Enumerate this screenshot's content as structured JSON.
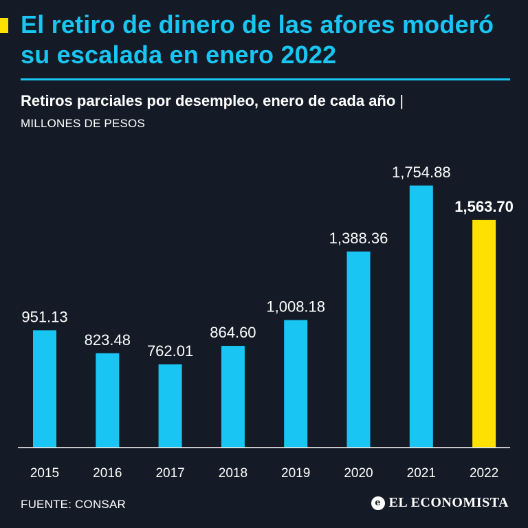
{
  "headline": "El retiro de dinero de las afores moderó su escalada en enero 2022",
  "subtitle": "Retiros parciales por desempleo, enero de cada año",
  "subtitle_separator": "|",
  "units_label": "MILLONES DE PESOS",
  "source": "FUENTE: CONSAR",
  "brand": {
    "name": "EL ECONOMISTA",
    "icon": "e-logo-icon"
  },
  "colors": {
    "background": "#141b26",
    "accent": "#19c6f3",
    "highlight": "#ffe000",
    "text": "#ffffff"
  },
  "chart_data": {
    "type": "bar",
    "title": "Retiros parciales por desempleo, enero de cada año",
    "ylabel": "MILLONES DE PESOS",
    "xlabel": "",
    "categories": [
      "2015",
      "2016",
      "2017",
      "2018",
      "2019",
      "2020",
      "2021",
      "2022"
    ],
    "values": [
      951.13,
      823.48,
      762.01,
      864.6,
      1008.18,
      1388.36,
      1754.88,
      1563.7
    ],
    "value_labels": [
      "951.13",
      "823.48",
      "762.01",
      "864.60",
      "1,008.18",
      "1,388.36",
      "1,754.88",
      "1,563.70"
    ],
    "highlight_index": 7,
    "ylim": [
      300,
      1800
    ],
    "grid": false,
    "legend": "none"
  }
}
